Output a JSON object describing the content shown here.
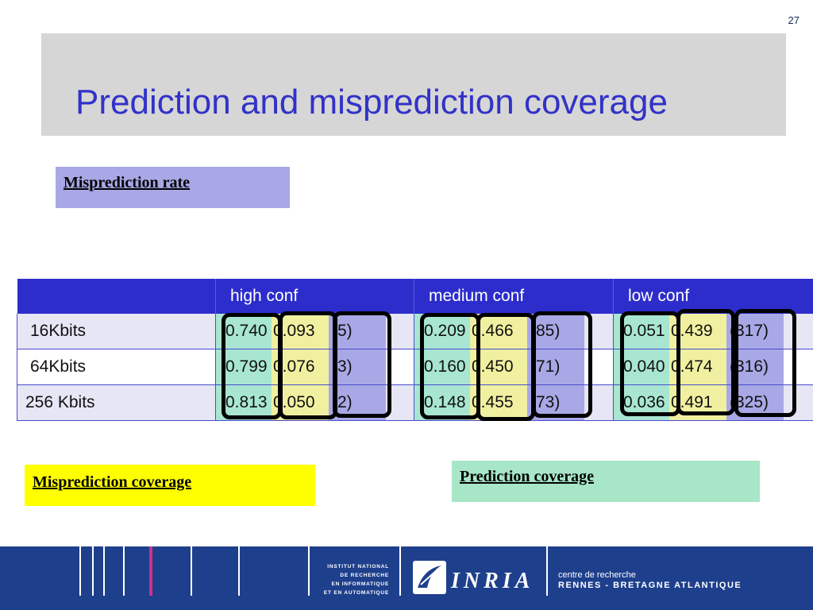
{
  "page_number": "27",
  "title": "Prediction and misprediction coverage",
  "legend": {
    "misprediction_rate": "Misprediction rate",
    "misprediction_coverage": "Misprediction coverage",
    "prediction_coverage": "Prediction coverage"
  },
  "table": {
    "headers": [
      "",
      "high conf",
      "medium conf",
      "low conf"
    ],
    "rows": [
      {
        "label": "16Kbits",
        "high": {
          "pc": "0.740",
          "mc": "0.093",
          "mr": "(5)"
        },
        "medium": {
          "pc": "0.209",
          "mc": "0.466",
          "mr": "(85)"
        },
        "low": {
          "pc": "0.051",
          "mc": "0.439",
          "mr": "(317)"
        }
      },
      {
        "label": "64Kbits",
        "high": {
          "pc": "0.799",
          "mc": "0.076",
          "mr": "(3)"
        },
        "medium": {
          "pc": "0.160",
          "mc": "0.450",
          "mr": "(71)"
        },
        "low": {
          "pc": "0.040",
          "mc": "0.474",
          "mr": "(316)"
        }
      },
      {
        "label": "256 Kbits",
        "high": {
          "pc": "0.813",
          "mc": "0.050",
          "mr": "(2)"
        },
        "medium": {
          "pc": "0.148",
          "mc": "0.455",
          "mr": "(73)"
        },
        "low": {
          "pc": "0.036",
          "mc": "0.491",
          "mr": "(325)"
        }
      }
    ]
  },
  "footer": {
    "institute_lines": [
      "INSTITUT NATIONAL",
      "DE RECHERCHE",
      "EN INFORMATIQUE",
      "ET EN AUTOMATIQUE"
    ],
    "logo": "INRIA",
    "centre_line1": "centre de recherche",
    "centre_line2": "RENNES - BRETAGNE ATLANTIQUE"
  }
}
